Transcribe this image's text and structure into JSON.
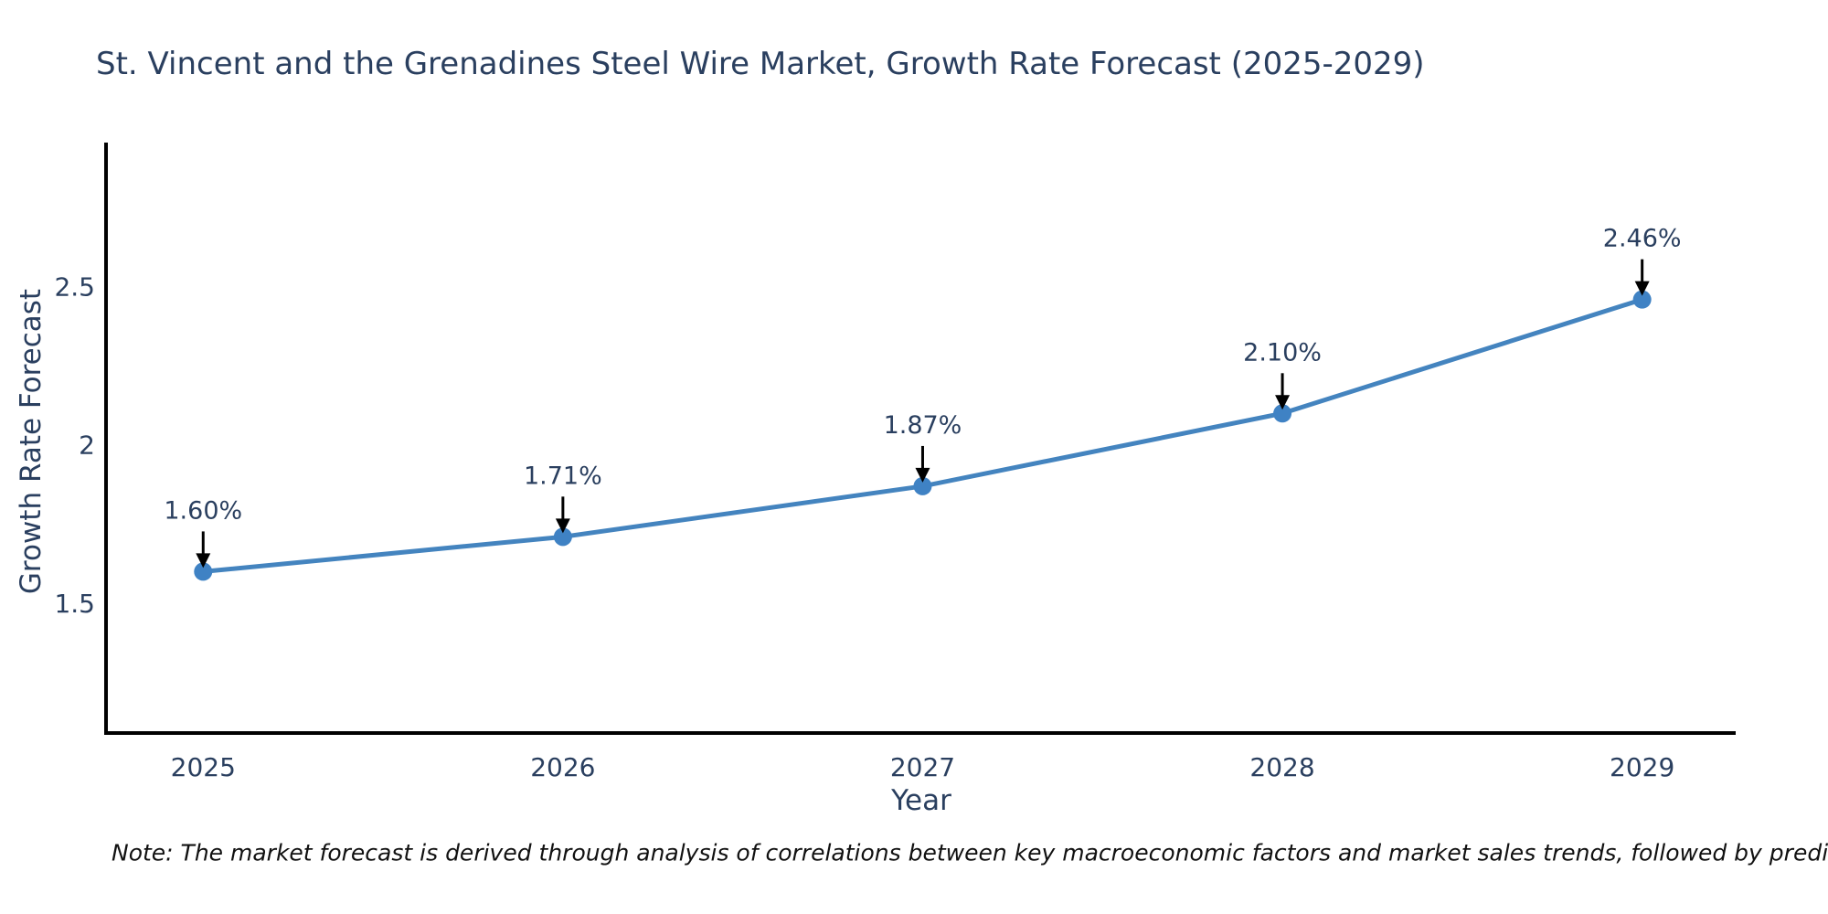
{
  "title": "St. Vincent and the Grenadines Steel Wire Market, Growth Rate Forecast (2025-2029)",
  "note": "Note: The market forecast is derived through analysis of correlations between key macroeconomic factors and market sales trends, followed by predictive modeling to project future sales",
  "chart_data": {
    "type": "line",
    "title": "St. Vincent and the Grenadines Steel Wire Market, Growth Rate Forecast (2025-2029)",
    "xlabel": "Year",
    "ylabel": "Growth Rate Forecast",
    "x": [
      2025,
      2026,
      2027,
      2028,
      2029
    ],
    "values": [
      1.6,
      1.71,
      1.87,
      2.1,
      2.46
    ],
    "point_labels": [
      "1.60%",
      "1.71%",
      "1.87%",
      "2.10%",
      "2.46%"
    ],
    "x_tick_labels": [
      "2025",
      "2026",
      "2027",
      "2028",
      "2029"
    ],
    "y_ticks": [
      1.5,
      2,
      2.5
    ],
    "y_tick_labels": [
      "1.5",
      "2",
      "2.5"
    ],
    "xlim": [
      2024.73,
      2029.26
    ],
    "ylim": [
      1.09,
      2.95
    ],
    "grid": false,
    "legend": "none",
    "colors": {
      "line": "#4484bf",
      "marker": "#3f82c4",
      "axis": "#000000",
      "text": "#2a3f5f",
      "annotation_arrow": "#000000"
    }
  }
}
